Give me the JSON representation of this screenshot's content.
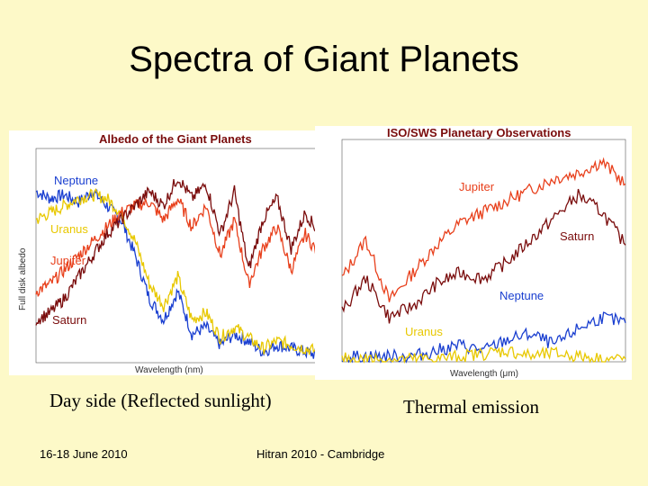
{
  "slide": {
    "title": "Spectra of Giant Planets",
    "caption_left": "Day side (Reflected sunlight)",
    "caption_right": "Thermal emission",
    "footer_date": "16-18 June 2010",
    "footer_event": "Hitran 2010 - Cambridge"
  },
  "chart_data": [
    {
      "type": "line",
      "title": "Albedo of the Giant Planets",
      "xlabel": "Wavelength (nm)",
      "ylabel": "Full disk albedo",
      "series": [
        {
          "name": "Neptune",
          "color": "#1a3fd0",
          "x": [
            300,
            340,
            380,
            420,
            460,
            500,
            540,
            580,
            620,
            660,
            700,
            740,
            780,
            820,
            860,
            900,
            940,
            980,
            1020,
            1060,
            1100
          ],
          "y": [
            0.48,
            0.46,
            0.47,
            0.45,
            0.48,
            0.44,
            0.4,
            0.3,
            0.18,
            0.12,
            0.2,
            0.08,
            0.1,
            0.05,
            0.08,
            0.06,
            0.03,
            0.05,
            0.04,
            0.03,
            0.02
          ]
        },
        {
          "name": "Uranus",
          "color": "#e8c800",
          "x": [
            300,
            340,
            380,
            420,
            460,
            500,
            540,
            580,
            620,
            660,
            700,
            740,
            780,
            820,
            860,
            900,
            940,
            980,
            1020,
            1060,
            1100
          ],
          "y": [
            0.4,
            0.42,
            0.44,
            0.46,
            0.47,
            0.46,
            0.42,
            0.34,
            0.22,
            0.16,
            0.24,
            0.12,
            0.14,
            0.07,
            0.1,
            0.07,
            0.04,
            0.06,
            0.05,
            0.04,
            0.03
          ]
        },
        {
          "name": "Jupiter",
          "color": "#e8401c",
          "x": [
            300,
            340,
            380,
            420,
            460,
            500,
            540,
            580,
            620,
            660,
            700,
            740,
            780,
            820,
            860,
            900,
            940,
            980,
            1020,
            1060,
            1100
          ],
          "y": [
            0.2,
            0.22,
            0.26,
            0.3,
            0.34,
            0.38,
            0.42,
            0.44,
            0.45,
            0.4,
            0.46,
            0.38,
            0.44,
            0.3,
            0.4,
            0.22,
            0.32,
            0.38,
            0.26,
            0.36,
            0.3
          ]
        },
        {
          "name": "Saturn",
          "color": "#7a0c0c",
          "x": [
            300,
            340,
            380,
            420,
            460,
            500,
            540,
            580,
            620,
            660,
            700,
            740,
            780,
            820,
            860,
            900,
            940,
            980,
            1020,
            1060,
            1100
          ],
          "y": [
            0.12,
            0.14,
            0.18,
            0.24,
            0.3,
            0.36,
            0.4,
            0.44,
            0.48,
            0.44,
            0.52,
            0.46,
            0.5,
            0.36,
            0.48,
            0.26,
            0.4,
            0.46,
            0.32,
            0.42,
            0.36
          ]
        }
      ]
    },
    {
      "type": "line",
      "title": "ISO/SWS Planetary Observations",
      "xlabel": "Wavelength (μm)",
      "series": [
        {
          "name": "Jupiter",
          "color": "#e8401c",
          "x": [
            4,
            5,
            6,
            7,
            8,
            9,
            10,
            11,
            12,
            13,
            14,
            15,
            16
          ],
          "y": [
            1.5,
            2.2,
            1.1,
            1.6,
            2.1,
            2.5,
            2.7,
            2.9,
            3.1,
            3.3,
            3.4,
            3.6,
            3.2
          ]
        },
        {
          "name": "Saturn",
          "color": "#7a0c0c",
          "x": [
            4,
            5,
            6,
            7,
            8,
            9,
            10,
            11,
            12,
            13,
            14,
            15,
            16
          ],
          "y": [
            0.9,
            1.5,
            0.8,
            1.0,
            1.4,
            1.6,
            1.5,
            1.8,
            2.2,
            2.6,
            3.0,
            2.7,
            2.1
          ]
        },
        {
          "name": "Neptune",
          "color": "#1a3fd0",
          "x": [
            4,
            5,
            6,
            7,
            8,
            9,
            10,
            11,
            12,
            13,
            14,
            15,
            16
          ],
          "y": [
            0.1,
            0.1,
            0.1,
            0.1,
            0.2,
            0.3,
            0.2,
            0.4,
            0.5,
            0.3,
            0.6,
            0.8,
            0.7
          ]
        },
        {
          "name": "Uranus",
          "color": "#e8c800",
          "x": [
            4,
            5,
            6,
            7,
            8,
            9,
            10,
            11,
            12,
            13,
            14,
            15,
            16
          ],
          "y": [
            0.05,
            0.05,
            0.05,
            0.05,
            0.05,
            0.1,
            0.15,
            0.2,
            0.1,
            0.15,
            0.1,
            0.05,
            0.05
          ]
        }
      ]
    }
  ]
}
